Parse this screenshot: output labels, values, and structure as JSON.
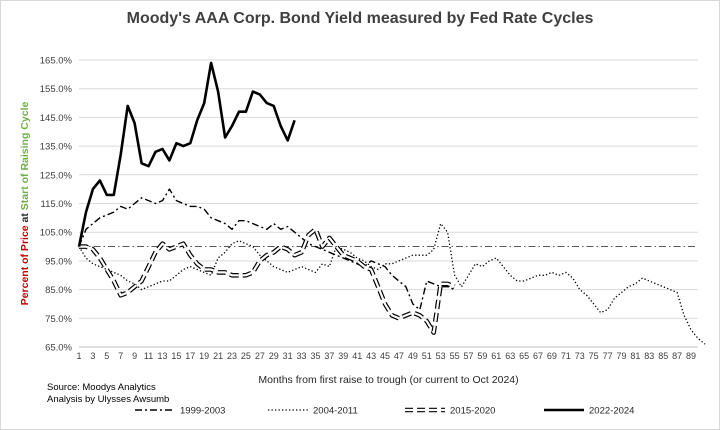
{
  "colors": {
    "positive": "#c00000",
    "accent": "#70ad47",
    "axis": "#595959",
    "grid": "#d9d9d9",
    "series": "#000000"
  },
  "chart_data": {
    "type": "line",
    "title": "Moody's AAA Corp. Bond Yield measured by Fed Rate Cycles",
    "xlabel": "Months from first raise to trough (or current to Oct 2024)",
    "ylabel_parts": [
      "Percent of Price",
      " at ",
      "Start of Raising Cycle"
    ],
    "ylim": [
      65,
      165
    ],
    "yticks": [
      "65.0%",
      "75.0%",
      "85.0%",
      "95.0%",
      "105.0%",
      "115.0%",
      "125.0%",
      "135.0%",
      "145.0%",
      "155.0%",
      "165.0%"
    ],
    "xlim": [
      1,
      90
    ],
    "xticks": [
      1,
      3,
      5,
      7,
      9,
      11,
      13,
      15,
      17,
      19,
      21,
      23,
      25,
      27,
      29,
      31,
      33,
      35,
      37,
      39,
      41,
      43,
      45,
      47,
      49,
      51,
      53,
      55,
      57,
      59,
      61,
      63,
      65,
      67,
      69,
      71,
      73,
      75,
      77,
      79,
      81,
      83,
      85,
      87,
      89
    ],
    "grid": "horizontal",
    "legend_position": "bottom",
    "reference_line": 100,
    "series": [
      {
        "name": "1999-2003",
        "style": "dashdot",
        "values": [
          100,
          106,
          108,
          110,
          111,
          112,
          114,
          113,
          115,
          117,
          116,
          115,
          116,
          120,
          116,
          115,
          114,
          114,
          113,
          110,
          109,
          108,
          106,
          109,
          109,
          108,
          107,
          106,
          108,
          106,
          107,
          105,
          103,
          101,
          100,
          99,
          98,
          97,
          96,
          95,
          94,
          93,
          95,
          94,
          93,
          90,
          88,
          86,
          80,
          78,
          88,
          87,
          86,
          86,
          85
        ]
      },
      {
        "name": "2004-2011",
        "style": "dotted",
        "values": [
          100,
          96,
          94,
          93,
          92,
          91,
          90,
          88,
          87,
          85,
          86,
          87,
          88,
          88,
          90,
          92,
          93,
          92,
          91,
          90,
          96,
          98,
          101,
          102,
          101,
          100,
          97,
          95,
          93,
          92,
          91,
          92,
          93,
          92,
          91,
          94,
          93,
          100,
          99,
          98,
          96,
          95,
          93,
          92,
          94,
          94,
          95,
          96,
          97,
          97,
          97,
          99,
          108,
          105,
          90,
          86,
          90,
          94,
          93,
          95,
          96,
          93,
          90,
          88,
          88,
          89,
          90,
          90,
          91,
          90,
          91,
          89,
          85,
          83,
          80,
          77,
          78,
          82,
          84,
          86,
          87,
          89,
          88,
          87,
          86,
          85,
          84,
          76,
          71,
          68,
          66
        ]
      },
      {
        "name": "2015-2020",
        "style": "dashed",
        "values": [
          100,
          100,
          99,
          96,
          92,
          88,
          83,
          84,
          86,
          88,
          93,
          98,
          101,
          99,
          100,
          101,
          97,
          94,
          92,
          92,
          91,
          91,
          90,
          90,
          90,
          91,
          95,
          97,
          98,
          100,
          99,
          97,
          98,
          104,
          106,
          100,
          103,
          100,
          97,
          96,
          95,
          93,
          92,
          86,
          80,
          76,
          75,
          76,
          77,
          76,
          74,
          70,
          87,
          87,
          86
        ]
      },
      {
        "name": "2022-2024",
        "style": "solid",
        "values": [
          100,
          112,
          120,
          123,
          118,
          118,
          132,
          149,
          143,
          129,
          128,
          133,
          134,
          130,
          136,
          135,
          136,
          144,
          150,
          164,
          154,
          138,
          142,
          147,
          147,
          154,
          153,
          150,
          149,
          142,
          137,
          144
        ]
      }
    ],
    "notes": [
      "Source: Moodys Analytics",
      "Analysis by Ulysses Awsumb"
    ]
  }
}
